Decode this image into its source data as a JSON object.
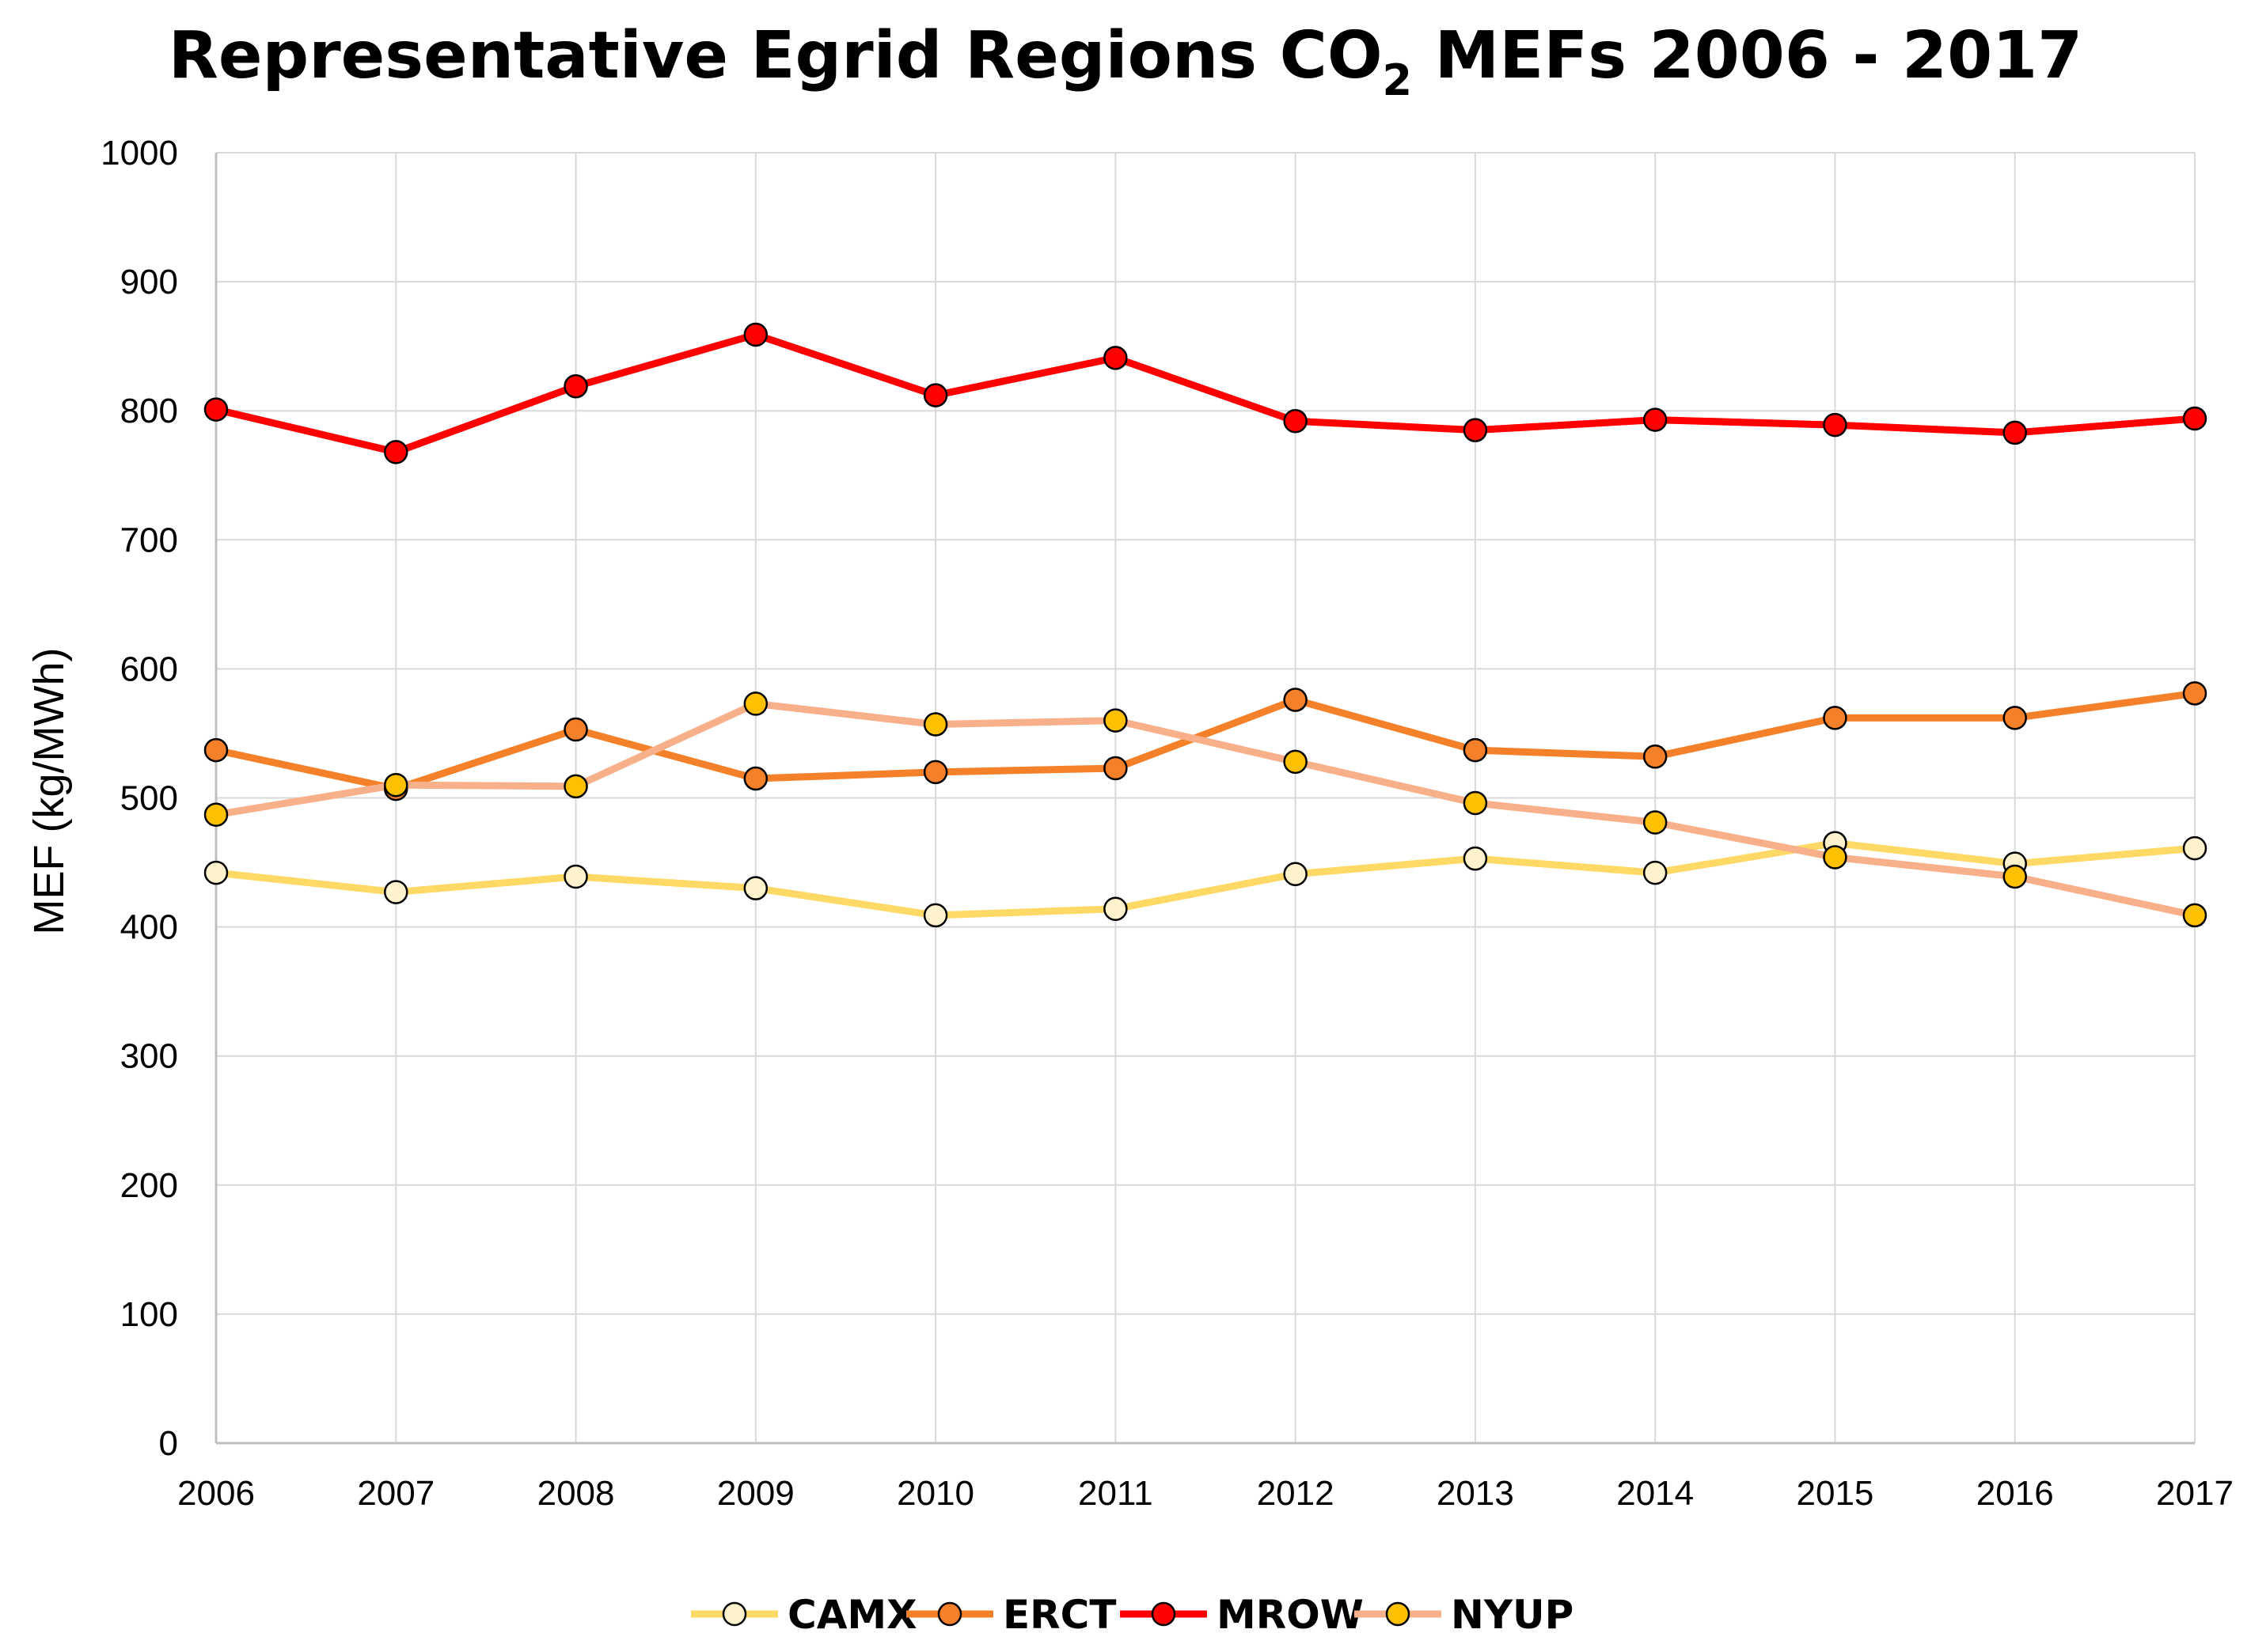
{
  "chart_data": {
    "type": "line",
    "title": {
      "main": "Representative Egrid Regions CO",
      "subscript": "2",
      "rest": " MEFs 2006 - 2017"
    },
    "xlabel": "",
    "ylabel": "MEF (kg/MWh)",
    "ylim": [
      0,
      1000
    ],
    "y_ticks": [
      0,
      100,
      200,
      300,
      400,
      500,
      600,
      700,
      800,
      900,
      1000
    ],
    "grid": true,
    "legend_position": "bottom",
    "categories": [
      "2006",
      "2007",
      "2008",
      "2009",
      "2010",
      "2011",
      "2012",
      "2013",
      "2014",
      "2015",
      "2016",
      "2017"
    ],
    "series": [
      {
        "name": "CAMX",
        "line_color": "#FFD966",
        "marker_color": "#FFF2CC",
        "values": [
          442,
          427,
          439,
          430,
          409,
          414,
          441,
          453,
          442,
          465,
          449,
          461
        ]
      },
      {
        "name": "ERCT",
        "line_color": "#F4802A",
        "marker_color": "#F4802A",
        "values": [
          537,
          507,
          553,
          515,
          520,
          523,
          576,
          537,
          532,
          562,
          562,
          581
        ]
      },
      {
        "name": "MROW",
        "line_color": "#FF0000",
        "marker_color": "#FF0000",
        "values": [
          801,
          768,
          819,
          859,
          812,
          841,
          792,
          785,
          793,
          789,
          783,
          794
        ]
      },
      {
        "name": "NYUP",
        "line_color": "#F8B08A",
        "marker_color": "#FFC000",
        "values": [
          487,
          510,
          509,
          573,
          557,
          560,
          528,
          496,
          481,
          454,
          439,
          409
        ]
      }
    ]
  }
}
